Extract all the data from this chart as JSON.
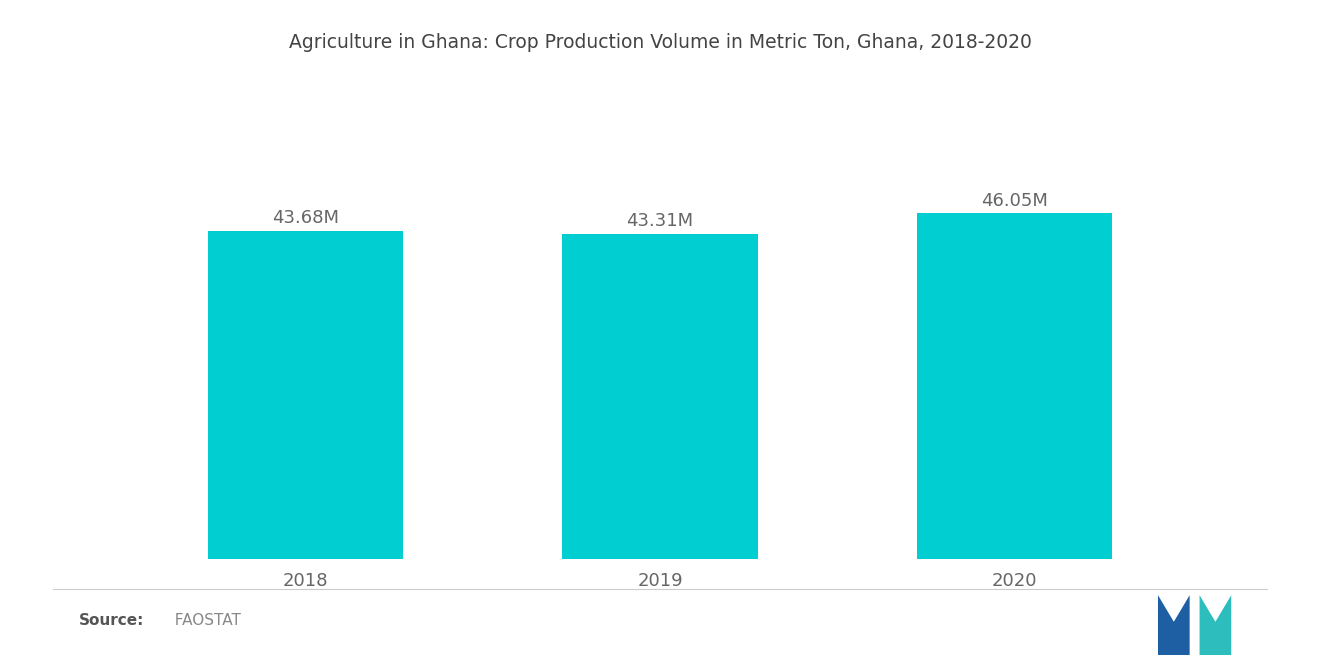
{
  "title": "Agriculture in Ghana: Crop Production Volume in Metric Ton, Ghana, 2018-2020",
  "categories": [
    "2018",
    "2019",
    "2020"
  ],
  "values": [
    43.68,
    43.31,
    46.05
  ],
  "labels": [
    "43.68M",
    "43.31M",
    "46.05M"
  ],
  "bar_color": "#00CED1",
  "background_color": "#ffffff",
  "title_fontsize": 13.5,
  "label_fontsize": 13,
  "tick_fontsize": 13,
  "source_bold": "Source:",
  "source_normal": "  FAOSTAT",
  "ylim": [
    0,
    55
  ],
  "bar_width": 0.55,
  "xlim": [
    -0.6,
    2.6
  ]
}
